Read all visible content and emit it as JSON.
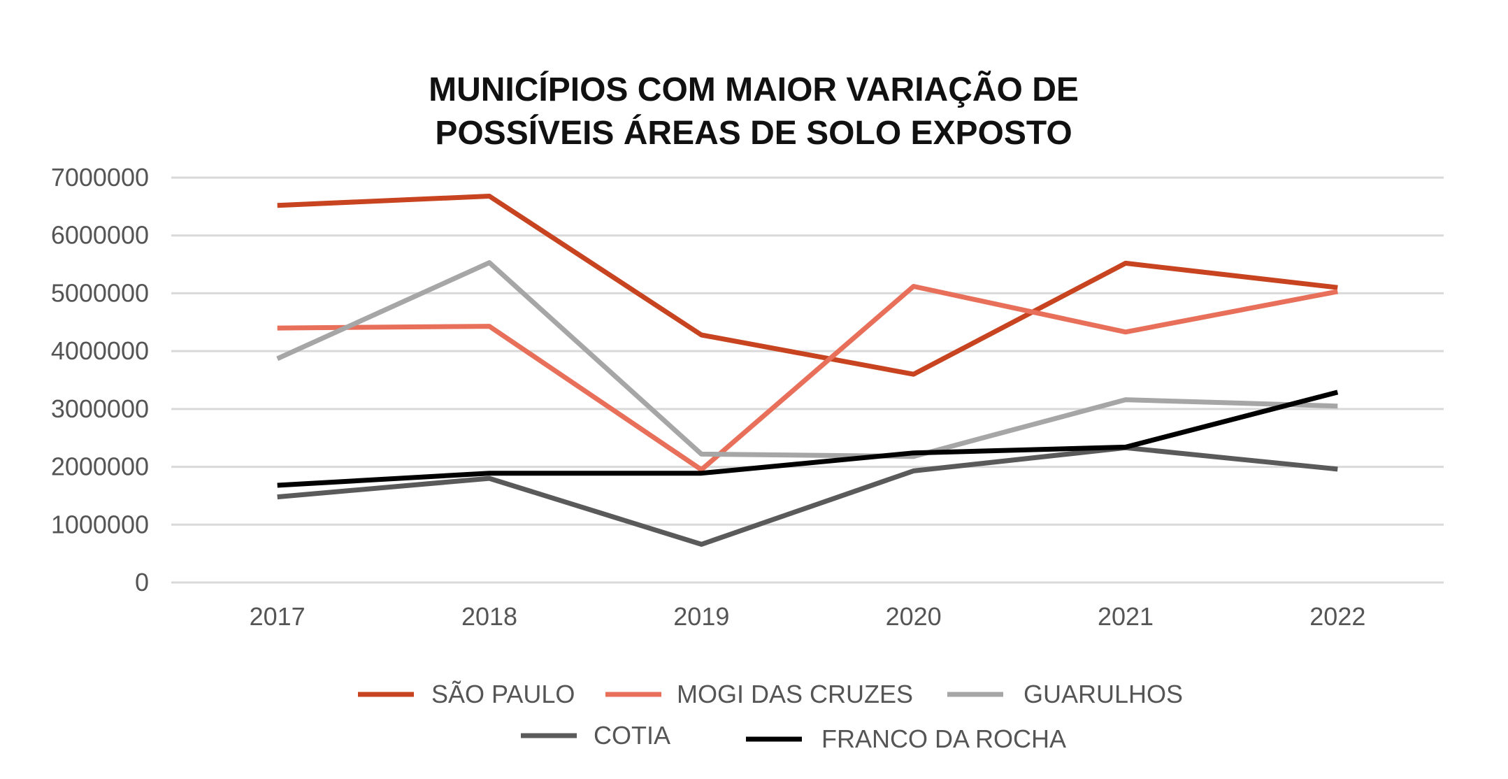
{
  "chart_data": {
    "type": "line",
    "title": [
      "MUNICÍPIOS COM MAIOR VARIAÇÃO DE",
      "POSSÍVEIS ÁREAS DE SOLO EXPOSTO"
    ],
    "xlabel": "",
    "ylabel": "",
    "categories": [
      "2017",
      "2018",
      "2019",
      "2020",
      "2021",
      "2022"
    ],
    "ylim": [
      0,
      7000000
    ],
    "yticks": [
      0,
      1000000,
      2000000,
      3000000,
      4000000,
      5000000,
      6000000,
      7000000
    ],
    "ytick_labels": [
      "0",
      "1000000",
      "2000000",
      "3000000",
      "4000000",
      "5000000",
      "6000000",
      "7000000"
    ],
    "grid": true,
    "legend_position": "bottom",
    "series": [
      {
        "name": "SÃO PAULO",
        "color": "#c8431f",
        "values": [
          6520000,
          6680000,
          4280000,
          3600000,
          5520000,
          5100000
        ]
      },
      {
        "name": "MOGI DAS CRUZES",
        "color": "#e8705a",
        "values": [
          4400000,
          4430000,
          1950000,
          5120000,
          4330000,
          5030000
        ]
      },
      {
        "name": "GUARULHOS",
        "color": "#a6a6a6",
        "values": [
          3870000,
          5530000,
          2220000,
          2180000,
          3160000,
          3050000
        ]
      },
      {
        "name": "COTIA",
        "color": "#5a5a5a",
        "values": [
          1480000,
          1800000,
          660000,
          1930000,
          2330000,
          1960000
        ]
      },
      {
        "name": "FRANCO DA ROCHA",
        "color": "#000000",
        "values": [
          1680000,
          1890000,
          1890000,
          2240000,
          2340000,
          3290000
        ]
      }
    ]
  }
}
